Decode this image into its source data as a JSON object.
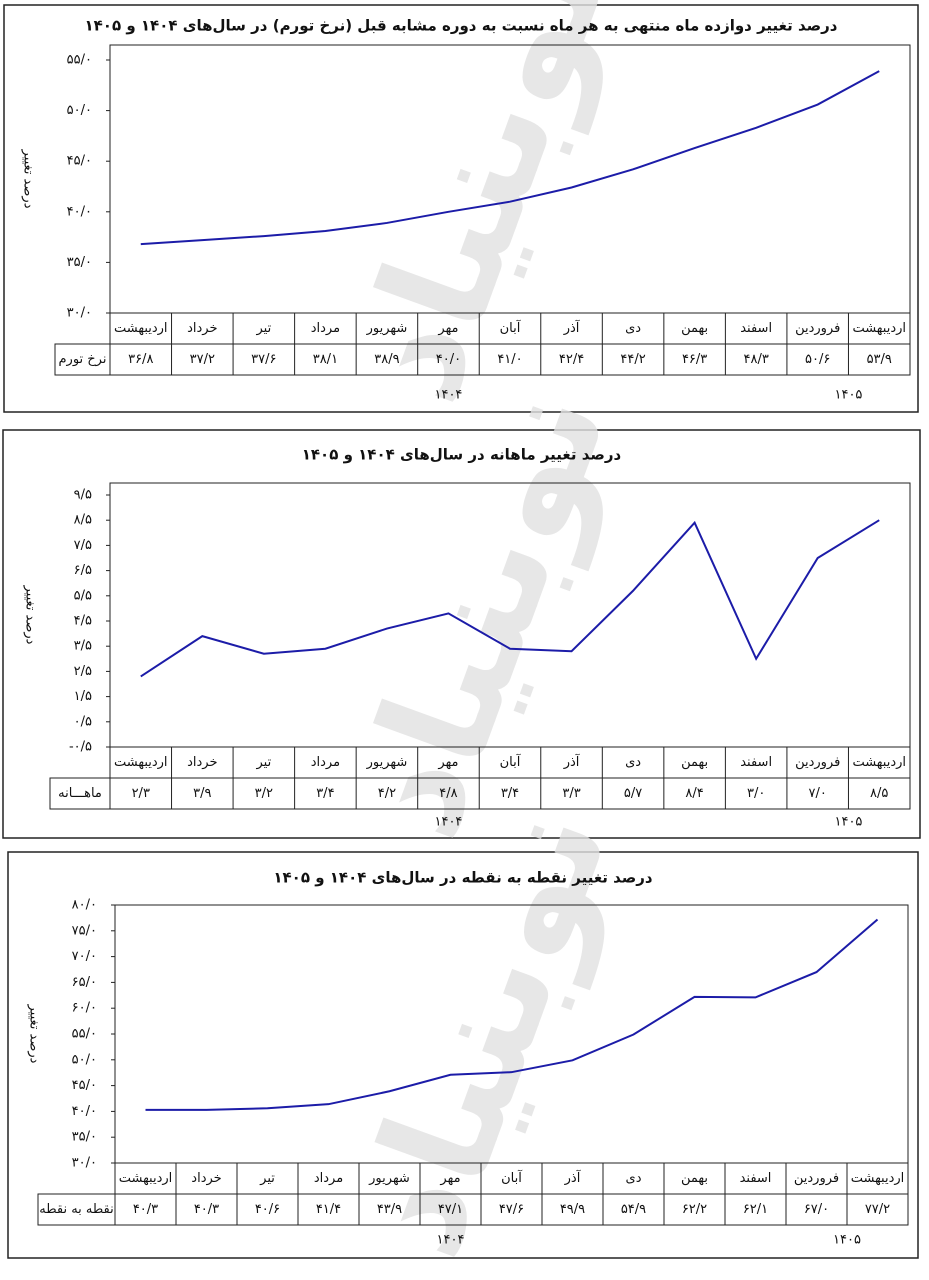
{
  "watermark": "نوبنیاد",
  "chart_data": [
    {
      "type": "line",
      "title": "درصد تغییر دوازده ماه منتهی به هر ماه نسبت به دوره مشابه قبل (نرخ تورم) در سال‌های ۱۴۰۴ و ۱۴۰۵",
      "y_label": "درصد تغییر",
      "categories": [
        "اردیبهشت",
        "خرداد",
        "تیر",
        "مرداد",
        "شهریور",
        "مهر",
        "آبان",
        "آذر",
        "دی",
        "بهمن",
        "اسفند",
        "فروردین",
        "اردیبهشت"
      ],
      "series": [
        {
          "name": "نرخ تورم",
          "color": "#1c1ca8",
          "values": [
            36.8,
            37.2,
            37.6,
            38.1,
            38.9,
            40.0,
            41.0,
            42.4,
            44.2,
            46.3,
            48.3,
            50.6,
            53.9
          ],
          "value_labels": [
            "۳۶/۸",
            "۳۷/۲",
            "۳۷/۶",
            "۳۸/۱",
            "۳۸/۹",
            "۴۰/۰",
            "۴۱/۰",
            "۴۲/۴",
            "۴۴/۲",
            "۴۶/۳",
            "۴۸/۳",
            "۵۰/۶",
            "۵۳/۹"
          ]
        }
      ],
      "ylim": [
        30,
        55
      ],
      "yticks": [
        {
          "value": 30,
          "label": "۳۰/۰"
        },
        {
          "value": 35,
          "label": "۳۵/۰"
        },
        {
          "value": 40,
          "label": "۴۰/۰"
        },
        {
          "value": 45,
          "label": "۴۵/۰"
        },
        {
          "value": 50,
          "label": "۵۰/۰"
        },
        {
          "value": 55,
          "label": "۵۵/۰"
        }
      ],
      "year_labels": [
        "۱۴۰۴",
        "۱۴۰۵"
      ]
    },
    {
      "type": "line",
      "title": "درصد تغییر ماهانه در سال‌های ۱۴۰۴ و ۱۴۰۵",
      "y_label": "درصد تغییر",
      "categories": [
        "اردیبهشت",
        "خرداد",
        "تیر",
        "مرداد",
        "شهریور",
        "مهر",
        "آبان",
        "آذر",
        "دی",
        "بهمن",
        "اسفند",
        "فروردین",
        "اردیبهشت"
      ],
      "series": [
        {
          "name": "ماهـــانه",
          "color": "#1c1ca8",
          "values": [
            2.3,
            3.9,
            3.2,
            3.4,
            4.2,
            4.8,
            3.4,
            3.3,
            5.7,
            8.4,
            3.0,
            7.0,
            8.5
          ],
          "value_labels": [
            "۲/۳",
            "۳/۹",
            "۳/۲",
            "۳/۴",
            "۴/۲",
            "۴/۸",
            "۳/۴",
            "۳/۳",
            "۵/۷",
            "۸/۴",
            "۳/۰",
            "۷/۰",
            "۸/۵"
          ]
        }
      ],
      "ylim": [
        -0.5,
        9.5
      ],
      "yticks": [
        {
          "value": -0.5,
          "label": "-۰/۵"
        },
        {
          "value": 0.5,
          "label": "۰/۵"
        },
        {
          "value": 1.5,
          "label": "۱/۵"
        },
        {
          "value": 2.5,
          "label": "۲/۵"
        },
        {
          "value": 3.5,
          "label": "۳/۵"
        },
        {
          "value": 4.5,
          "label": "۴/۵"
        },
        {
          "value": 5.5,
          "label": "۵/۵"
        },
        {
          "value": 6.5,
          "label": "۶/۵"
        },
        {
          "value": 7.5,
          "label": "۷/۵"
        },
        {
          "value": 8.5,
          "label": "۸/۵"
        },
        {
          "value": 9.5,
          "label": "۹/۵"
        }
      ],
      "year_labels": [
        "۱۴۰۴",
        "۱۴۰۵"
      ]
    },
    {
      "type": "line",
      "title": "درصد تغییر نقطه به نقطه در سال‌های ۱۴۰۴ و ۱۴۰۵",
      "y_label": "درصد تغییر",
      "categories": [
        "اردیبهشت",
        "خرداد",
        "تیر",
        "مرداد",
        "شهریور",
        "مهر",
        "آبان",
        "آذر",
        "دی",
        "بهمن",
        "اسفند",
        "فروردین",
        "اردیبهشت"
      ],
      "series": [
        {
          "name": "نقطه به نقطه",
          "color": "#1c1ca8",
          "values": [
            40.3,
            40.3,
            40.6,
            41.4,
            43.9,
            47.1,
            47.6,
            49.9,
            54.9,
            62.2,
            62.1,
            67.0,
            77.2
          ],
          "value_labels": [
            "۴۰/۳",
            "۴۰/۳",
            "۴۰/۶",
            "۴۱/۴",
            "۴۳/۹",
            "۴۷/۱",
            "۴۷/۶",
            "۴۹/۹",
            "۵۴/۹",
            "۶۲/۲",
            "۶۲/۱",
            "۶۷/۰",
            "۷۷/۲"
          ]
        }
      ],
      "ylim": [
        30,
        80
      ],
      "yticks": [
        {
          "value": 30,
          "label": "۳۰/۰"
        },
        {
          "value": 35,
          "label": "۳۵/۰"
        },
        {
          "value": 40,
          "label": "۴۰/۰"
        },
        {
          "value": 45,
          "label": "۴۵/۰"
        },
        {
          "value": 50,
          "label": "۵۰/۰"
        },
        {
          "value": 55,
          "label": "۵۵/۰"
        },
        {
          "value": 60,
          "label": "۶۰/۰"
        },
        {
          "value": 65,
          "label": "۶۵/۰"
        },
        {
          "value": 70,
          "label": "۷۰/۰"
        },
        {
          "value": 75,
          "label": "۷۵/۰"
        },
        {
          "value": 80,
          "label": "۸۰/۰"
        }
      ],
      "year_labels": [
        "۱۴۰۴",
        "۱۴۰۵"
      ]
    }
  ]
}
